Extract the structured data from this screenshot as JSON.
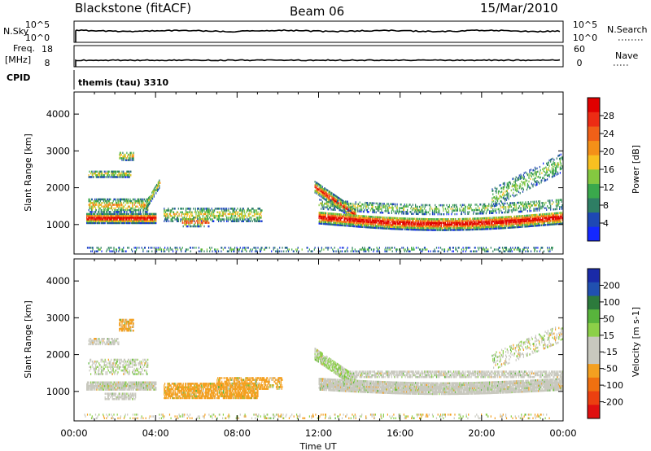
{
  "header": {
    "station": "Blackstone (fitACF)",
    "beam": "Beam 06",
    "date": "15/Mar/2010"
  },
  "top_panels": {
    "nsky_label": "N.Sky",
    "nsky_ticks": [
      "10^5",
      "10^0"
    ],
    "nsearch_label": "N.Search",
    "nsearch_ticks": [
      "10^5",
      "10^0"
    ],
    "freq_label": "Freq.",
    "freq_unit": "[MHz]",
    "freq_ticks": [
      "18",
      "8"
    ],
    "nave_label": "Nave",
    "nave_ticks": [
      "60",
      "0"
    ],
    "cpid_label": "CPID",
    "cpid_value": "themis (tau) 3310"
  },
  "chart_data": [
    {
      "type": "heatmap",
      "name": "power",
      "ylabel": "Slant Range [km]",
      "ylim": [
        200,
        4600
      ],
      "yticks": [
        "1000",
        "2000",
        "3000",
        "4000"
      ],
      "xlabel": "Time UT",
      "xlim_hours": [
        0,
        24
      ],
      "xticks": [
        "00:00",
        "04:00",
        "08:00",
        "12:00",
        "16:00",
        "20:00",
        "00:00"
      ],
      "colorbar": {
        "label": "Power [dB]",
        "ticks": [
          "4",
          "8",
          "12",
          "16",
          "20",
          "24",
          "28"
        ],
        "colors": [
          "#1428ff",
          "#1e48b4",
          "#2e7e64",
          "#3aa84c",
          "#84c840",
          "#f8c020",
          "#f49018",
          "#f06018",
          "#ec2c14",
          "#e00000"
        ]
      }
    },
    {
      "type": "heatmap",
      "name": "velocity",
      "ylabel": "Slant Range [km]",
      "ylim": [
        200,
        4600
      ],
      "yticks": [
        "1000",
        "2000",
        "3000",
        "4000"
      ],
      "xlabel": "Time UT",
      "xlim_hours": [
        0,
        24
      ],
      "xticks": [
        "00:00",
        "04:00",
        "08:00",
        "12:00",
        "16:00",
        "20:00",
        "00:00"
      ],
      "colorbar": {
        "label": "Velocity [m s-1]",
        "ticks": [
          "200",
          "100",
          "50",
          "15",
          "-15",
          "-50",
          "-100",
          "-200"
        ],
        "colors": [
          "#1a2aa8",
          "#2050b0",
          "#2c7a3c",
          "#58b43c",
          "#8cd048",
          "#c8c8be",
          "#c8c8be",
          "#f4a020",
          "#f07010",
          "#ec4010",
          "#e01010"
        ]
      }
    }
  ]
}
